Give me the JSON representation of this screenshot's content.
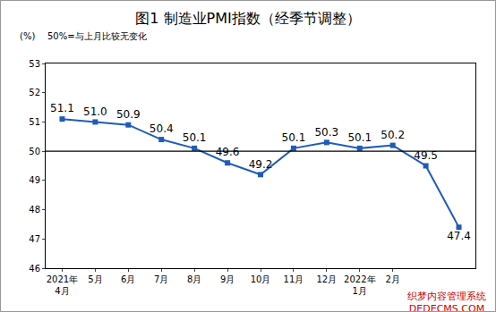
{
  "chart_data": {
    "type": "line",
    "title": "图1 制造业PMI指数（经季节调整）",
    "y_label": "(%)",
    "note": "50%=与上月比较无变化",
    "watermark": [
      "织梦内容管理系统",
      "DEDECMS.COM"
    ],
    "categories": [
      "2021年\n4月",
      "5月",
      "6月",
      "7月",
      "8月",
      "9月",
      "10月",
      "11月",
      "12月",
      "2022年\n1月",
      "2月",
      null,
      null
    ],
    "values": [
      51.1,
      51.0,
      50.9,
      50.4,
      50.1,
      49.6,
      49.2,
      50.1,
      50.3,
      50.1,
      50.2,
      49.5,
      47.4
    ],
    "value_labels": [
      "51.1",
      "51.0",
      "50.9",
      "50.4",
      "50.1",
      "49.6",
      "49.2",
      "50.1",
      "50.3",
      "50.1",
      "50.2",
      "49.5",
      "47.4"
    ],
    "color": "#1f5cb8",
    "marker": "square",
    "reference_line": 50,
    "ylim": [
      46,
      53
    ],
    "yticks": [
      46,
      47,
      48,
      49,
      50,
      51,
      52,
      53
    ],
    "grid": false,
    "data_labels": true
  }
}
